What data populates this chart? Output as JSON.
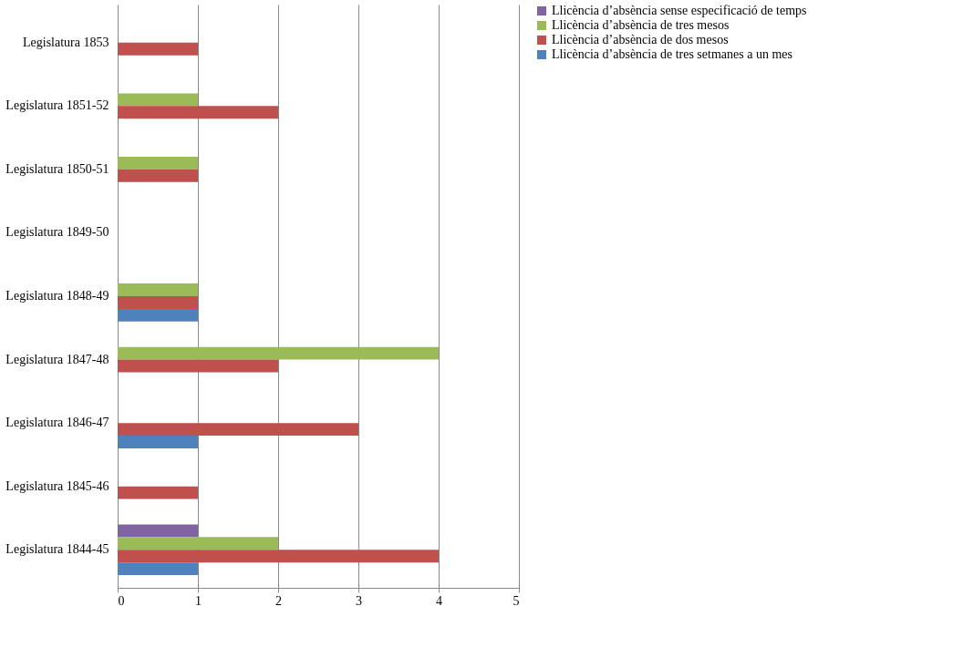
{
  "chart_data": {
    "type": "bar",
    "orientation": "horizontal",
    "categories": [
      "Legislatura 1853",
      "Legislatura 1851-52",
      "Legislatura 1850-51",
      "Legislatura 1849-50",
      "Legislatura 1848-49",
      "Legislatura 1847-48",
      "Legislatura 1846-47",
      "Legislatura 1845-46",
      "Legislatura 1844-45"
    ],
    "series": [
      {
        "name": "Llicència d’absència sense especificació de temps",
        "color": "#8064a2",
        "values": [
          0,
          0,
          0,
          0,
          0,
          0,
          0,
          0,
          1
        ]
      },
      {
        "name": "Llicència d’absència de tres mesos",
        "color": "#9bbb59",
        "values": [
          0,
          1,
          1,
          0,
          1,
          4,
          0,
          0,
          2
        ]
      },
      {
        "name": "Llicència d’absència de dos mesos",
        "color": "#c0504d",
        "values": [
          1,
          2,
          1,
          0,
          1,
          2,
          3,
          1,
          4
        ]
      },
      {
        "name": "Llicència d’absència de tres setmanes a un mes",
        "color": "#4f81bd",
        "values": [
          0,
          0,
          0,
          0,
          1,
          0,
          1,
          0,
          1
        ]
      }
    ],
    "xlim": [
      0,
      5
    ],
    "xticks": [
      0,
      1,
      2,
      3,
      4,
      5
    ],
    "grid": "x",
    "legend": "right"
  }
}
